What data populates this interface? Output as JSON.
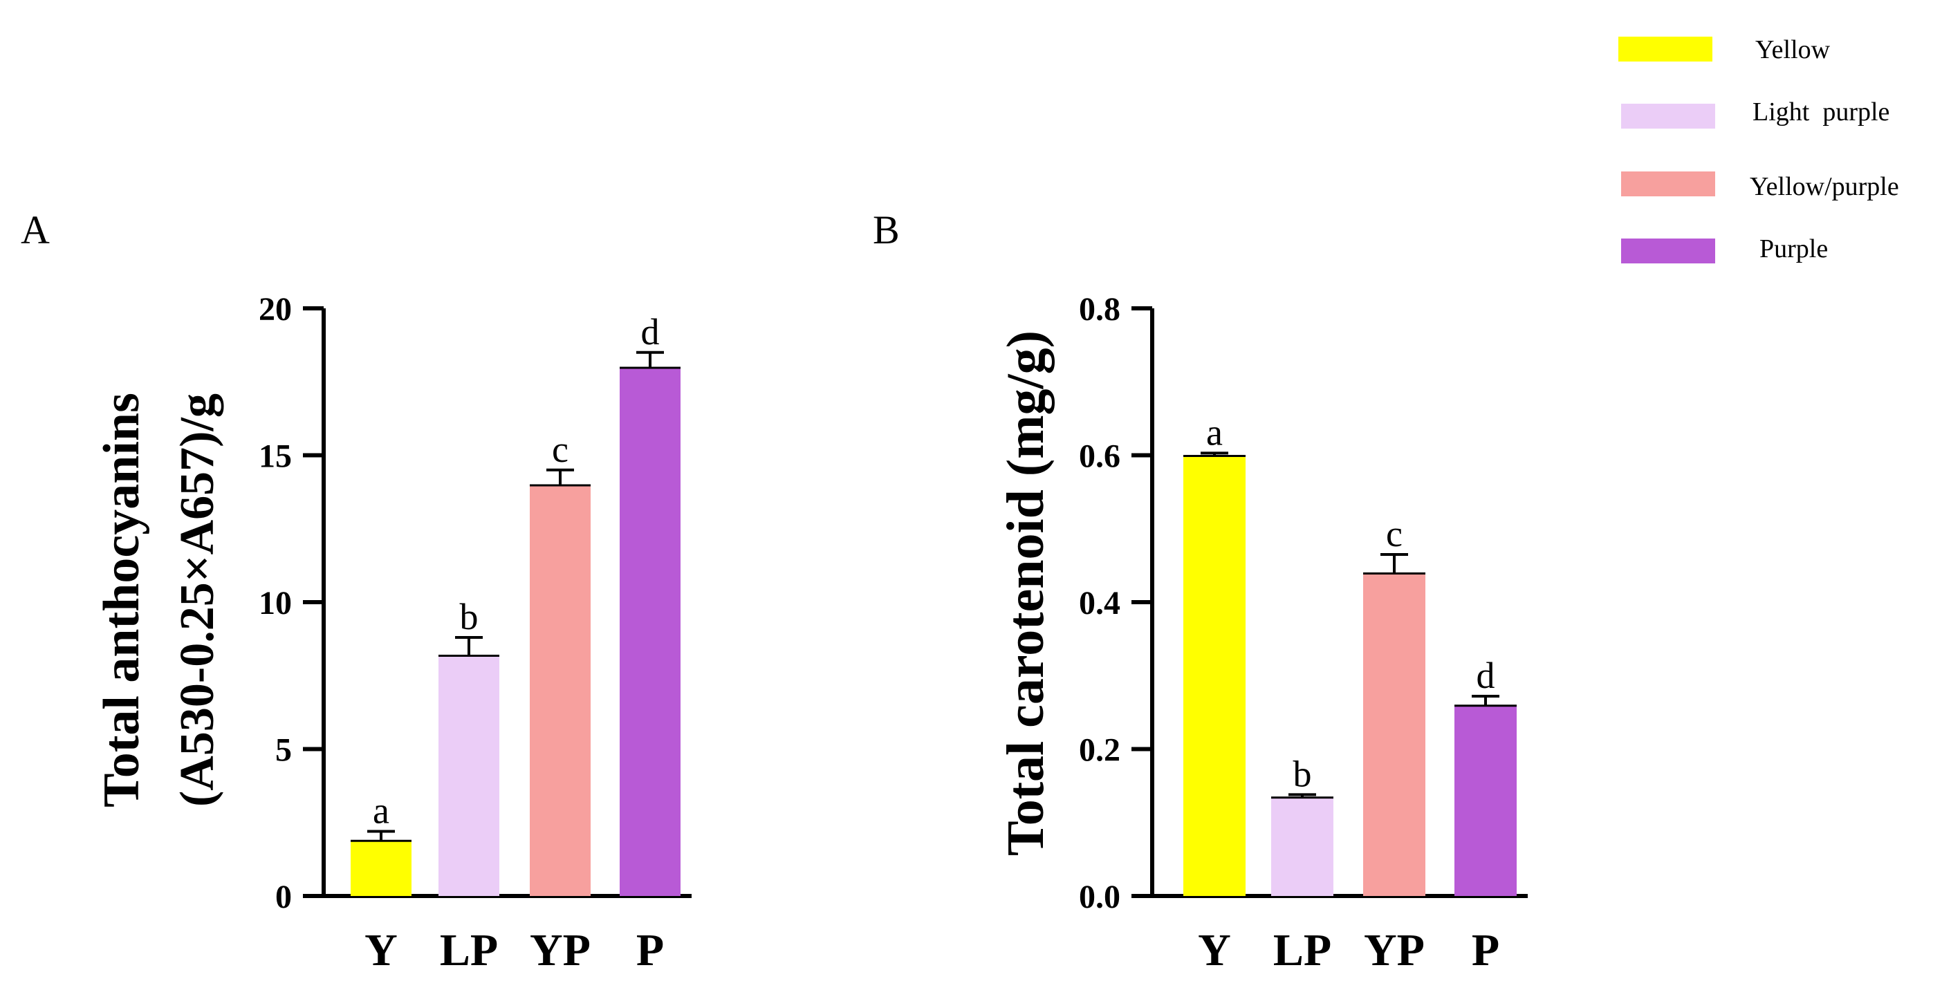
{
  "legend": {
    "position": "top-right",
    "items": [
      {
        "label": "Yellow",
        "color": "#FFFF00"
      },
      {
        "label": "Light  purple",
        "color": "#EBCDF7"
      },
      {
        "label": "Yellow/purple",
        "color": "#F7A09E"
      },
      {
        "label": "Purple",
        "color": "#B85AD6"
      }
    ]
  },
  "chart_data": [
    {
      "panel_label": "A",
      "type": "bar",
      "title": "",
      "xlabel": "",
      "ylabel_line1": "Total anthocyanins",
      "ylabel_line2": "(A530-0.25×A657)/g",
      "categories": [
        "Y",
        "LP",
        "YP",
        "P"
      ],
      "values": [
        1.9,
        8.2,
        14.0,
        18.0
      ],
      "errors": [
        0.3,
        0.6,
        0.5,
        0.5
      ],
      "significance": [
        "a",
        "b",
        "c",
        "d"
      ],
      "colors": [
        "#FFFF00",
        "#EBCDF7",
        "#F7A09E",
        "#B85AD6"
      ],
      "ylim": [
        0,
        20
      ],
      "yticks": [
        0,
        5,
        10,
        15,
        20
      ],
      "ytick_labels": [
        "0",
        "5",
        "10",
        "15",
        "20"
      ],
      "grid": false
    },
    {
      "panel_label": "B",
      "type": "bar",
      "title": "",
      "xlabel": "",
      "ylabel_line1": "Total carotenoid (mg/g)",
      "ylabel_line2": "",
      "categories": [
        "Y",
        "LP",
        "YP",
        "P"
      ],
      "values": [
        0.6,
        0.135,
        0.44,
        0.26
      ],
      "errors": [
        0.003,
        0.003,
        0.025,
        0.012
      ],
      "significance": [
        "a",
        "b",
        "c",
        "d"
      ],
      "colors": [
        "#FFFF00",
        "#EBCDF7",
        "#F7A09E",
        "#B85AD6"
      ],
      "ylim": [
        0,
        0.8
      ],
      "yticks": [
        0,
        0.2,
        0.4,
        0.6,
        0.8
      ],
      "ytick_labels": [
        "0.0",
        "0.2",
        "0.4",
        "0.6",
        "0.8"
      ],
      "grid": false
    }
  ]
}
